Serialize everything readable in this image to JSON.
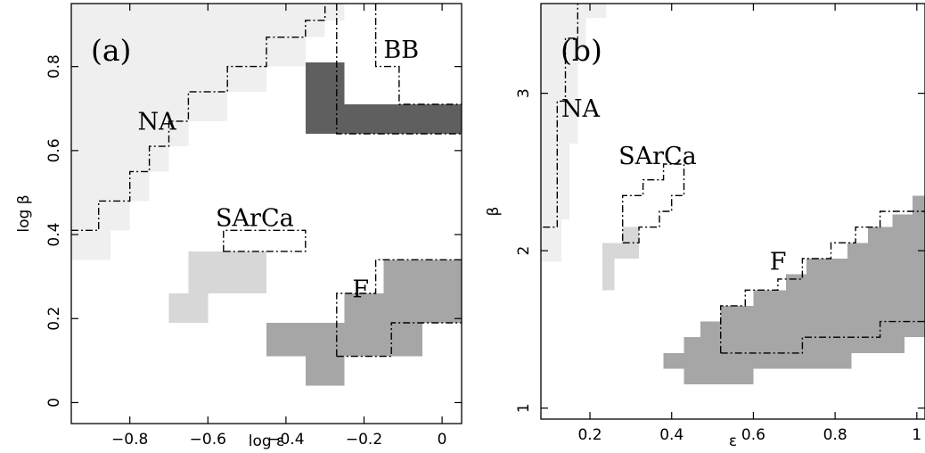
{
  "chart_data": [
    {
      "type": "heatmap",
      "panel_label": "(a)",
      "xlabel": "log ε",
      "ylabel": "log β",
      "xlim": [
        -0.95,
        0.05
      ],
      "ylim": [
        -0.05,
        0.95
      ],
      "x_ticks": [
        -0.8,
        -0.6,
        -0.4,
        -0.2,
        0
      ],
      "x_tick_labels": [
        "−0.8",
        "−0.6",
        "−0.4",
        "−0.2",
        "0"
      ],
      "y_ticks": [
        0,
        0.2,
        0.4,
        0.6,
        0.8
      ],
      "y_tick_labels": [
        "0",
        "0.2",
        "0.4",
        "0.6",
        "0.8"
      ],
      "grid": false,
      "categories": [
        {
          "name": "NA",
          "color": "#efefef",
          "cells": [
            [
              -0.95,
              0.91,
              -0.25,
              0.95
            ],
            [
              -0.95,
              0.87,
              -0.3,
              0.91
            ],
            [
              -0.95,
              0.8,
              -0.35,
              0.87
            ],
            [
              -0.95,
              0.74,
              -0.45,
              0.8
            ],
            [
              -0.95,
              0.67,
              -0.55,
              0.74
            ],
            [
              -0.95,
              0.61,
              -0.65,
              0.67
            ],
            [
              -0.95,
              0.55,
              -0.7,
              0.61
            ],
            [
              -0.95,
              0.48,
              -0.75,
              0.55
            ],
            [
              -0.95,
              0.41,
              -0.8,
              0.48
            ],
            [
              -0.95,
              0.34,
              -0.85,
              0.41
            ]
          ]
        },
        {
          "name": "BB",
          "color": "#5f5f5f",
          "cells": [
            [
              -0.35,
              0.64,
              0.05,
              0.71
            ],
            [
              -0.35,
              0.71,
              -0.25,
              0.81
            ]
          ]
        },
        {
          "name": "SArCa",
          "color": "#d7d7d7",
          "cells": [
            [
              -0.65,
              0.26,
              -0.45,
              0.36
            ],
            [
              -0.7,
              0.19,
              -0.6,
              0.26
            ]
          ]
        },
        {
          "name": "F",
          "color": "#a6a6a6",
          "cells": [
            [
              -0.15,
              0.26,
              0.05,
              0.34
            ],
            [
              -0.25,
              0.19,
              0.05,
              0.26
            ],
            [
              -0.45,
              0.11,
              -0.05,
              0.19
            ],
            [
              -0.35,
              0.04,
              -0.25,
              0.11
            ]
          ]
        }
      ],
      "outlines": [
        {
          "name": "NA",
          "points": [
            [
              -0.95,
              0.41
            ],
            [
              -0.88,
              0.41
            ],
            [
              -0.88,
              0.48
            ],
            [
              -0.8,
              0.48
            ],
            [
              -0.8,
              0.55
            ],
            [
              -0.75,
              0.55
            ],
            [
              -0.75,
              0.61
            ],
            [
              -0.7,
              0.61
            ],
            [
              -0.7,
              0.67
            ],
            [
              -0.65,
              0.67
            ],
            [
              -0.65,
              0.74
            ],
            [
              -0.55,
              0.74
            ],
            [
              -0.55,
              0.8
            ],
            [
              -0.45,
              0.8
            ],
            [
              -0.45,
              0.87
            ],
            [
              -0.35,
              0.87
            ],
            [
              -0.35,
              0.91
            ],
            [
              -0.3,
              0.91
            ],
            [
              -0.3,
              0.95
            ]
          ]
        },
        {
          "name": "SArCa",
          "points": [
            [
              -0.56,
              0.36
            ],
            [
              -0.35,
              0.36
            ],
            [
              -0.35,
              0.41
            ],
            [
              -0.56,
              0.41
            ]
          ],
          "closed": true
        },
        {
          "name": "BB",
          "points": [
            [
              -0.17,
              0.95
            ],
            [
              -0.17,
              0.8
            ],
            [
              -0.11,
              0.8
            ],
            [
              -0.11,
              0.71
            ],
            [
              0.05,
              0.71
            ]
          ]
        },
        {
          "name": "BB",
          "points": [
            [
              -0.27,
              0.95
            ],
            [
              -0.27,
              0.64
            ],
            [
              0.05,
              0.64
            ]
          ]
        },
        {
          "name": "F",
          "points": [
            [
              -0.27,
              0.11
            ],
            [
              -0.27,
              0.26
            ],
            [
              -0.17,
              0.26
            ],
            [
              -0.17,
              0.34
            ],
            [
              0.05,
              0.34
            ]
          ]
        },
        {
          "name": "F",
          "points": [
            [
              -0.27,
              0.11
            ],
            [
              -0.13,
              0.11
            ],
            [
              -0.13,
              0.19
            ],
            [
              0.05,
              0.19
            ]
          ]
        }
      ],
      "annotations": [
        {
          "text": "NA",
          "x": -0.78,
          "y": 0.65
        },
        {
          "text": "BB",
          "x": -0.15,
          "y": 0.82
        },
        {
          "text": "SArCa",
          "x": -0.58,
          "y": 0.42
        },
        {
          "text": "F",
          "x": -0.23,
          "y": 0.25
        }
      ]
    },
    {
      "type": "heatmap",
      "panel_label": "(b)",
      "xlabel": "ε",
      "ylabel": "β",
      "xlim": [
        0.08,
        1.02
      ],
      "ylim": [
        0.93,
        3.57
      ],
      "x_ticks": [
        0.2,
        0.4,
        0.6,
        0.8,
        1.0
      ],
      "x_tick_labels": [
        "0.2",
        "0.4",
        "0.6",
        "0.8",
        "1"
      ],
      "y_ticks": [
        1,
        2,
        3
      ],
      "y_tick_labels": [
        "1",
        "2",
        "3"
      ],
      "grid": false,
      "categories": [
        {
          "name": "NA",
          "color": "#efefef",
          "cells": [
            [
              0.08,
              3.48,
              0.24,
              3.57
            ],
            [
              0.08,
              3.28,
              0.19,
              3.48
            ],
            [
              0.08,
              2.68,
              0.17,
              3.28
            ],
            [
              0.08,
              2.2,
              0.15,
              2.68
            ],
            [
              0.08,
              1.93,
              0.13,
              2.2
            ]
          ]
        },
        {
          "name": "SArCa",
          "color": "#d7d7d7",
          "cells": [
            [
              0.28,
              2.05,
              0.32,
              2.15
            ],
            [
              0.28,
              1.95,
              0.26,
              2.05
            ],
            [
              0.23,
              1.75,
              0.26,
              2.05
            ],
            [
              0.23,
              1.95,
              0.32,
              2.05
            ]
          ]
        },
        {
          "name": "F",
          "color": "#a6a6a6",
          "cells": [
            [
              0.99,
              2.23,
              1.02,
              2.35
            ],
            [
              0.94,
              2.15,
              1.02,
              2.23
            ],
            [
              0.88,
              2.05,
              1.02,
              2.15
            ],
            [
              0.83,
              1.95,
              1.02,
              2.05
            ],
            [
              0.73,
              1.85,
              1.02,
              1.95
            ],
            [
              0.68,
              1.75,
              1.02,
              1.85
            ],
            [
              0.6,
              1.65,
              1.02,
              1.75
            ],
            [
              0.52,
              1.55,
              1.02,
              1.65
            ],
            [
              0.47,
              1.45,
              1.02,
              1.55
            ],
            [
              0.43,
              1.35,
              0.97,
              1.45
            ],
            [
              0.38,
              1.25,
              0.84,
              1.35
            ],
            [
              0.43,
              1.15,
              0.6,
              1.25
            ]
          ]
        }
      ],
      "outlines": [
        {
          "name": "NA",
          "points": [
            [
              0.085,
              2.15
            ],
            [
              0.12,
              2.15
            ],
            [
              0.12,
              2.95
            ],
            [
              0.14,
              2.95
            ],
            [
              0.14,
              3.35
            ],
            [
              0.17,
              3.35
            ],
            [
              0.17,
              3.57
            ]
          ]
        },
        {
          "name": "SArCa",
          "points": [
            [
              0.28,
              2.05
            ],
            [
              0.32,
              2.05
            ],
            [
              0.32,
              2.15
            ],
            [
              0.37,
              2.15
            ],
            [
              0.37,
              2.25
            ],
            [
              0.4,
              2.25
            ],
            [
              0.4,
              2.35
            ],
            [
              0.43,
              2.35
            ],
            [
              0.43,
              2.55
            ],
            [
              0.38,
              2.55
            ],
            [
              0.38,
              2.45
            ],
            [
              0.33,
              2.45
            ],
            [
              0.33,
              2.35
            ],
            [
              0.28,
              2.35
            ]
          ],
          "closed": true
        },
        {
          "name": "F",
          "points": [
            [
              0.52,
              1.35
            ],
            [
              0.52,
              1.65
            ],
            [
              0.58,
              1.65
            ],
            [
              0.58,
              1.75
            ],
            [
              0.66,
              1.75
            ],
            [
              0.66,
              1.82
            ],
            [
              0.72,
              1.82
            ],
            [
              0.72,
              1.95
            ],
            [
              0.79,
              1.95
            ],
            [
              0.79,
              2.05
            ],
            [
              0.85,
              2.05
            ],
            [
              0.85,
              2.15
            ],
            [
              0.91,
              2.15
            ],
            [
              0.91,
              2.25
            ],
            [
              1.02,
              2.25
            ]
          ]
        },
        {
          "name": "F",
          "points": [
            [
              0.52,
              1.35
            ],
            [
              0.72,
              1.35
            ],
            [
              0.72,
              1.45
            ],
            [
              0.91,
              1.45
            ],
            [
              0.91,
              1.55
            ],
            [
              1.02,
              1.55
            ]
          ]
        }
      ],
      "annotations": [
        {
          "text": "NA",
          "x": 0.13,
          "y": 2.85
        },
        {
          "text": "SArCa",
          "x": 0.27,
          "y": 2.55
        },
        {
          "text": "F",
          "x": 0.64,
          "y": 1.88
        }
      ]
    }
  ]
}
